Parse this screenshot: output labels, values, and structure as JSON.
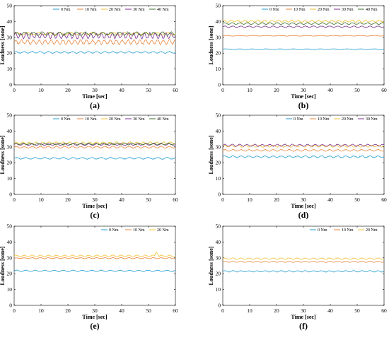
{
  "chart_data": [
    {
      "type": "line",
      "caption": "(a)",
      "xlabel": "Time [sec]",
      "ylabel": "Loudness [sone]",
      "xlim": [
        0,
        60
      ],
      "ylim": [
        0,
        50
      ],
      "xticks": [
        0,
        10,
        20,
        30,
        40,
        50,
        60
      ],
      "yticks": [
        0,
        10,
        20,
        30,
        40,
        50
      ],
      "grid": false,
      "legend": "top-right",
      "series": [
        {
          "name": "0 Nm",
          "color": "#1f9bd1",
          "mean": 20.5,
          "amp": 0.5,
          "period": 3.0
        },
        {
          "name": "10 Nm",
          "color": "#e8833a",
          "mean": 27.0,
          "amp": 1.3,
          "period": 2.2
        },
        {
          "name": "20 Nm",
          "color": "#f0c030",
          "mean": 32.3,
          "amp": 0.7,
          "period": 4.0
        },
        {
          "name": "30 Nm",
          "color": "#7e2f8e",
          "mean": 31.0,
          "amp": 1.6,
          "period": 2.0
        },
        {
          "name": "40 Nm",
          "color": "#3c6e2a",
          "mean": 32.3,
          "amp": 1.0,
          "period": 3.2
        }
      ]
    },
    {
      "type": "line",
      "caption": "(b)",
      "xlabel": "Time [sec]",
      "ylabel": "Loudness [sone]",
      "xlim": [
        0,
        60
      ],
      "ylim": [
        0,
        50
      ],
      "xticks": [
        0,
        10,
        20,
        30,
        40,
        50,
        60
      ],
      "yticks": [
        0,
        10,
        20,
        30,
        40,
        50
      ],
      "grid": false,
      "legend": "top-right",
      "series": [
        {
          "name": "0 Nm",
          "color": "#1f9bd1",
          "mean": 22.5,
          "amp": 0.2,
          "period": 5.0
        },
        {
          "name": "10 Nm",
          "color": "#e8833a",
          "mean": 31.0,
          "amp": 0.2,
          "period": 5.0
        },
        {
          "name": "20 Nm",
          "color": "#f0c030",
          "mean": 40.2,
          "amp": 0.6,
          "period": 2.5
        },
        {
          "name": "30 Nm",
          "color": "#7e2f8e",
          "mean": 36.7,
          "amp": 0.4,
          "period": 3.0
        },
        {
          "name": "40 Nm",
          "color": "#3c6e2a",
          "mean": 38.7,
          "amp": 0.5,
          "period": 2.8
        }
      ]
    },
    {
      "type": "line",
      "caption": "(c)",
      "xlabel": "Time [sec]",
      "ylabel": "Loudness [sone]",
      "xlim": [
        0,
        60
      ],
      "ylim": [
        0,
        50
      ],
      "xticks": [
        0,
        10,
        20,
        30,
        40,
        50,
        60
      ],
      "yticks": [
        0,
        10,
        20,
        30,
        40,
        50
      ],
      "grid": false,
      "legend": "top-right",
      "series": [
        {
          "name": "0 Nm",
          "color": "#1f9bd1",
          "mean": 22.8,
          "amp": 0.5,
          "period": 3.5
        },
        {
          "name": "10 Nm",
          "color": "#e8833a",
          "mean": 29.8,
          "amp": 0.5,
          "period": 3.0
        },
        {
          "name": "20 Nm",
          "color": "#f0c030",
          "mean": 32.5,
          "amp": 0.6,
          "period": 2.5
        },
        {
          "name": "30 Nm",
          "color": "#7e2f8e",
          "mean": 31.5,
          "amp": 0.5,
          "period": 3.0
        },
        {
          "name": "40 Nm",
          "color": "#3c6e2a",
          "mean": 31.8,
          "amp": 0.5,
          "period": 2.7
        }
      ]
    },
    {
      "type": "line",
      "caption": "(d)",
      "xlabel": "Time [sec]",
      "ylabel": "Loudness [sone]",
      "xlim": [
        0,
        60
      ],
      "ylim": [
        0,
        50
      ],
      "xticks": [
        0,
        10,
        20,
        30,
        40,
        50,
        60
      ],
      "yticks": [
        0,
        10,
        20,
        30,
        40,
        50
      ],
      "grid": false,
      "legend": "top-right",
      "series": [
        {
          "name": "0 Nm",
          "color": "#1f9bd1",
          "mean": 23.8,
          "amp": 0.5,
          "period": 3.0
        },
        {
          "name": "10 Nm",
          "color": "#e8833a",
          "mean": 27.8,
          "amp": 0.5,
          "period": 3.0
        },
        {
          "name": "20 Nm",
          "color": "#f0c030",
          "mean": 30.5,
          "amp": 0.6,
          "period": 2.6
        },
        {
          "name": "30 Nm",
          "color": "#7e2f8e",
          "mean": 31.0,
          "amp": 0.6,
          "period": 2.8
        }
      ]
    },
    {
      "type": "line",
      "caption": "(e)",
      "xlabel": "Time [sec]",
      "ylabel": "Loudness [sone]",
      "xlim": [
        0,
        60
      ],
      "ylim": [
        0,
        50
      ],
      "xticks": [
        0,
        10,
        20,
        30,
        40,
        50,
        60
      ],
      "yticks": [
        0,
        10,
        20,
        30,
        40,
        50
      ],
      "grid": false,
      "legend": "top-right",
      "series": [
        {
          "name": "0 Nm",
          "color": "#1f9bd1",
          "mean": 21.8,
          "amp": 0.4,
          "period": 3.5
        },
        {
          "name": "10 Nm",
          "color": "#e8833a",
          "mean": 29.8,
          "amp": 0.3,
          "period": 3.0
        },
        {
          "name": "20 Nm",
          "color": "#f0c030",
          "mean": 31.2,
          "amp": 0.5,
          "period": 3.0,
          "spike": [
            53,
            33.5
          ]
        }
      ]
    },
    {
      "type": "line",
      "caption": "(f)",
      "xlabel": "Time [sec]",
      "ylabel": "Loudness [sone]",
      "xlim": [
        0,
        60
      ],
      "ylim": [
        0,
        50
      ],
      "xticks": [
        0,
        10,
        20,
        30,
        40,
        50,
        60
      ],
      "yticks": [
        0,
        10,
        20,
        30,
        40,
        50
      ],
      "grid": false,
      "legend": "top-right",
      "series": [
        {
          "name": "0 Nm",
          "color": "#1f9bd1",
          "mean": 21.5,
          "amp": 0.4,
          "period": 3.0
        },
        {
          "name": "10 Nm",
          "color": "#e8833a",
          "mean": 27.5,
          "amp": 0.3,
          "period": 3.0
        },
        {
          "name": "20 Nm",
          "color": "#f0c030",
          "mean": 29.5,
          "amp": 0.4,
          "period": 3.0
        }
      ]
    }
  ]
}
